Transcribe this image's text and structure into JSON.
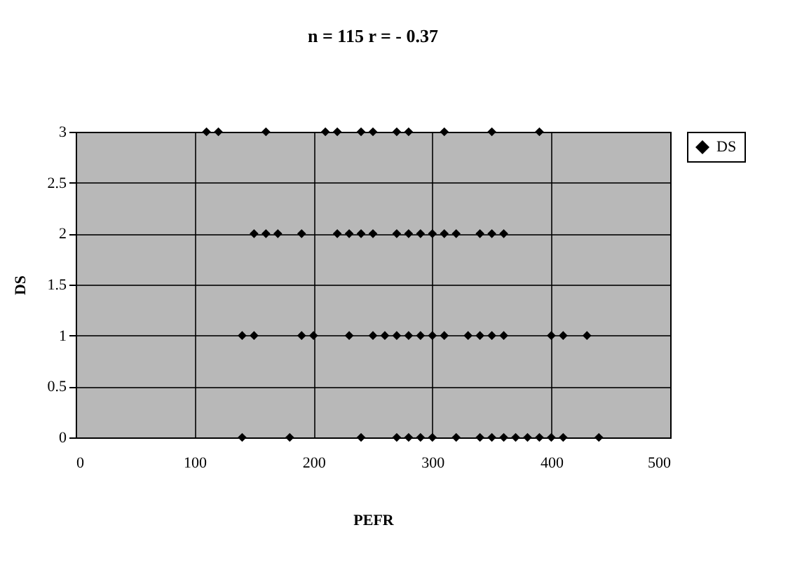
{
  "chart_data": {
    "type": "scatter",
    "title": "n = 115  r = - 0.37",
    "xlabel": "PEFR",
    "ylabel": "DS",
    "xlim": [
      0,
      500
    ],
    "xticks": [
      0,
      100,
      200,
      300,
      400,
      500
    ],
    "ylim": [
      0,
      3
    ],
    "yticks": [
      0,
      0.5,
      1,
      1.5,
      2,
      2.5,
      3
    ],
    "grid": true,
    "legend": "right",
    "marker": "diamond",
    "series": [
      {
        "name": "DS",
        "color": "#000000",
        "x": [
          110,
          120,
          160,
          210,
          220,
          240,
          250,
          270,
          280,
          310,
          350,
          390,
          150,
          160,
          170,
          190,
          220,
          230,
          240,
          250,
          270,
          280,
          290,
          300,
          310,
          320,
          340,
          350,
          360,
          140,
          150,
          190,
          200,
          230,
          250,
          260,
          270,
          280,
          290,
          300,
          310,
          330,
          340,
          350,
          360,
          400,
          410,
          430,
          140,
          180,
          240,
          270,
          280,
          290,
          300,
          320,
          340,
          350,
          360,
          370,
          380,
          390,
          400,
          410,
          440
        ],
        "values": [
          3,
          3,
          3,
          3,
          3,
          3,
          3,
          3,
          3,
          3,
          3,
          3,
          2,
          2,
          2,
          2,
          2,
          2,
          2,
          2,
          2,
          2,
          2,
          2,
          2,
          2,
          2,
          2,
          2,
          1,
          1,
          1,
          1,
          1,
          1,
          1,
          1,
          1,
          1,
          1,
          1,
          1,
          1,
          1,
          1,
          1,
          1,
          1,
          0,
          0,
          0,
          0,
          0,
          0,
          0,
          0,
          0,
          0,
          0,
          0,
          0,
          0,
          0,
          0,
          0
        ]
      }
    ]
  }
}
